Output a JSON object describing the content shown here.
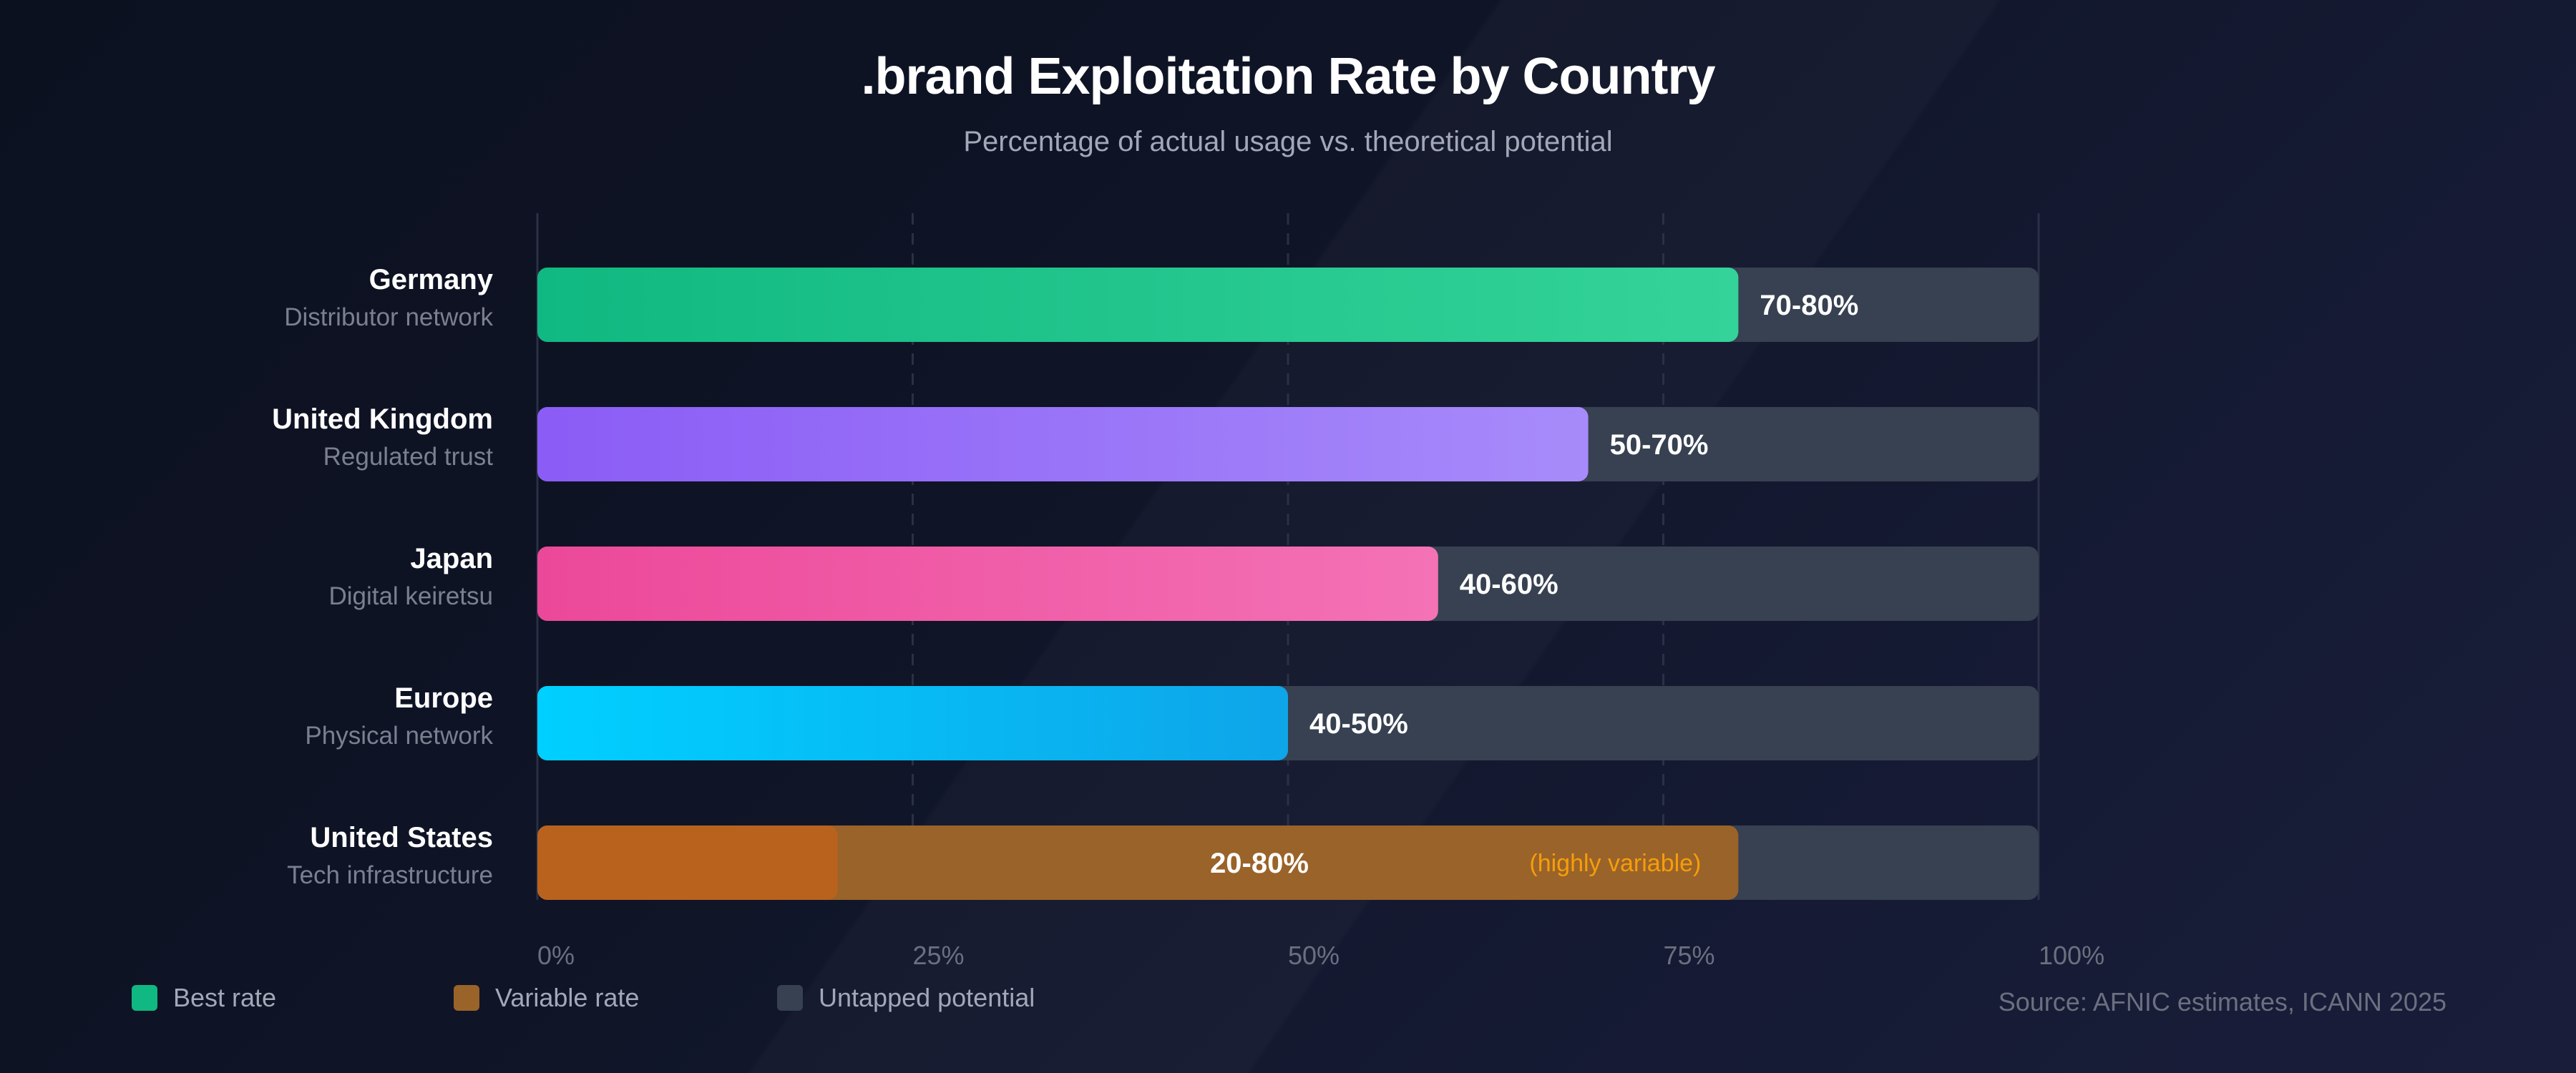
{
  "chart_data": {
    "type": "bar",
    "orientation": "horizontal",
    "title": ".brand Exploitation Rate by Country",
    "subtitle": "Percentage of actual usage vs. theoretical potential",
    "xlim": [
      0,
      100
    ],
    "x_ticks": [
      "0%",
      "25%",
      "50%",
      "75%",
      "100%"
    ],
    "grid": true,
    "categories": [
      {
        "name": "Germany",
        "note": "Distributor network",
        "low": 70,
        "high": 80,
        "label": "70-80%",
        "color_start": "#10b981",
        "color_end": "#34d399"
      },
      {
        "name": "United Kingdom",
        "note": "Regulated trust",
        "low": 50,
        "high": 70,
        "label": "50-70%",
        "color_start": "#8b5cf6",
        "color_end": "#a78bfa"
      },
      {
        "name": "Japan",
        "note": "Digital keiretsu",
        "low": 40,
        "high": 60,
        "label": "40-60%",
        "color_start": "#ec4899",
        "color_end": "#f472b6"
      },
      {
        "name": "Europe",
        "note": "Physical network",
        "low": 40,
        "high": 50,
        "label": "40-50%",
        "color_start": "#00d0ff",
        "color_end": "#0ea5e9"
      },
      {
        "name": "United States",
        "note": "Tech infrastructure",
        "low": 20,
        "high": 80,
        "label": "20-80%",
        "annotation": "(highly variable)",
        "color_start": "#b9621e",
        "color_end": "#9a6329",
        "variable": true
      }
    ],
    "untapped_color": "#374151",
    "legend": {
      "placement": "bottom-left",
      "items": [
        {
          "label": "Best rate",
          "color": "#10b981"
        },
        {
          "label": "Variable rate",
          "color": "#9a6329"
        },
        {
          "label": "Untapped potential",
          "color": "#374151"
        }
      ]
    }
  },
  "source": "Source: AFNIC estimates, ICANN 2025",
  "colors": {
    "annotation": "#f59e0b",
    "muted_text": "#6b7080"
  }
}
